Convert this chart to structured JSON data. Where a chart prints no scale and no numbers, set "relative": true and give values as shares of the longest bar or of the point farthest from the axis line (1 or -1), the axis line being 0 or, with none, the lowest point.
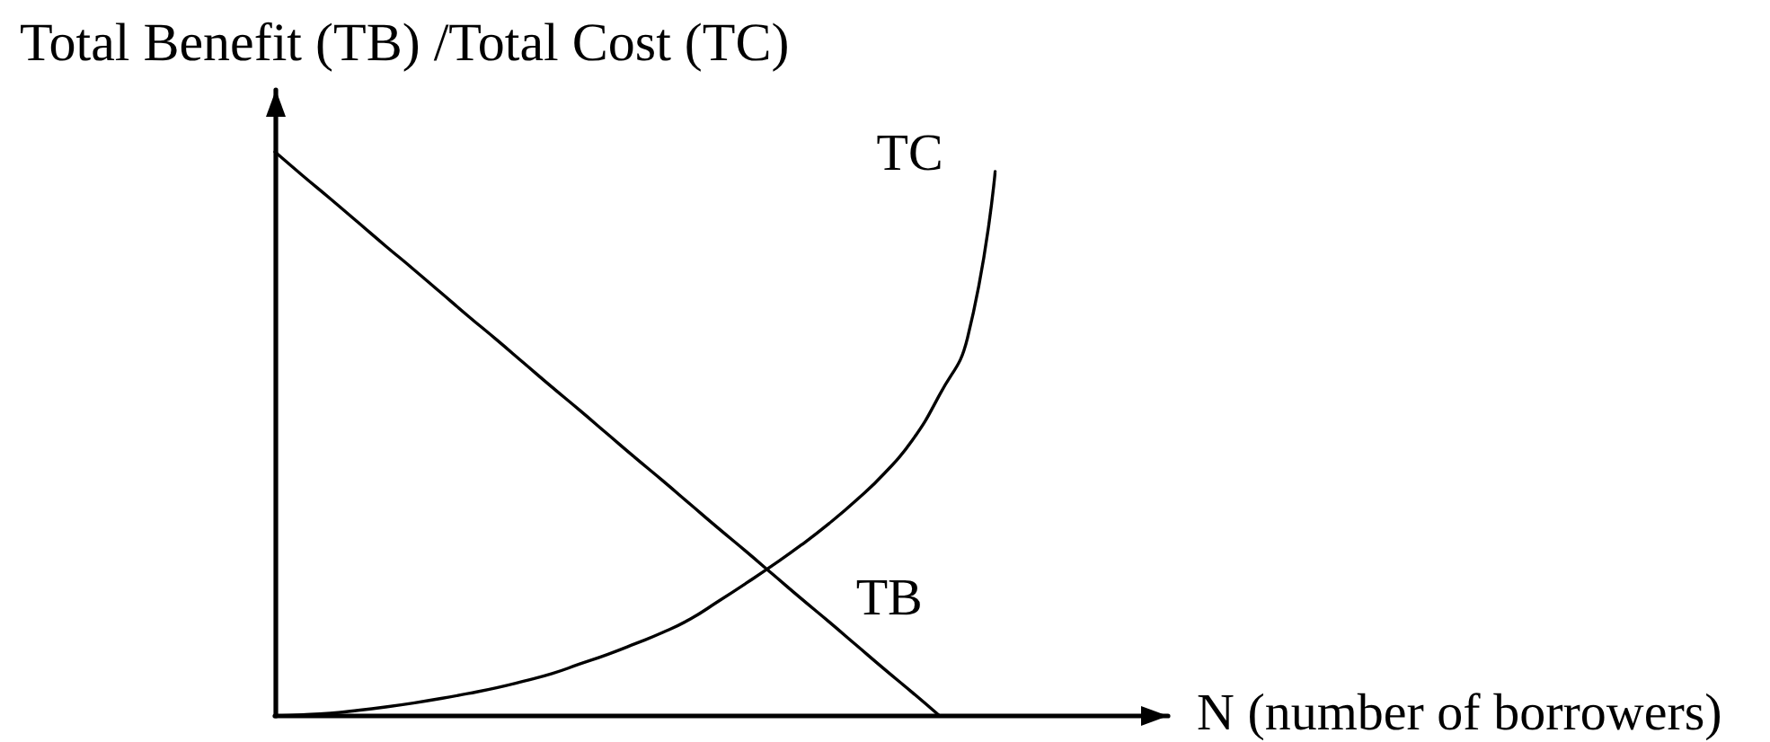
{
  "chart_data": {
    "type": "line",
    "ylabel": "Total Benefit (TB) /Total Cost (TC)",
    "xlabel": "N (number of borrowers)",
    "relative": true,
    "marker": "none",
    "line_style": "solid",
    "categories": [
      null,
      null,
      null,
      null,
      null,
      null,
      null,
      null,
      null,
      null,
      null,
      null,
      null,
      null,
      null,
      null,
      null,
      null,
      null,
      null,
      null,
      null,
      null,
      null,
      null,
      null,
      null
    ],
    "series": [
      {
        "name": "TB",
        "color": "#000000",
        "values": [
          1,
          0.958,
          0.917,
          0.875,
          0.833,
          0.792,
          0.75,
          0.708,
          0.667,
          0.625,
          0.583,
          0.542,
          0.5,
          0.458,
          0.417,
          0.375,
          0.333,
          0.292,
          0.25,
          0.208,
          0.167,
          0.125,
          0.083,
          0.042,
          0,
          null,
          null
        ]
      },
      {
        "name": "TC",
        "color": "#000000",
        "values": [
          0,
          0.002,
          0.005,
          0.01,
          0.016,
          0.023,
          0.031,
          0.04,
          0.05,
          0.062,
          0.075,
          0.092,
          0.109,
          0.128,
          0.148,
          0.172,
          0.203,
          0.235,
          0.268,
          0.303,
          0.341,
          0.383,
          0.43,
          0.488,
          0.57,
          0.67,
          0.965
        ]
      }
    ]
  }
}
